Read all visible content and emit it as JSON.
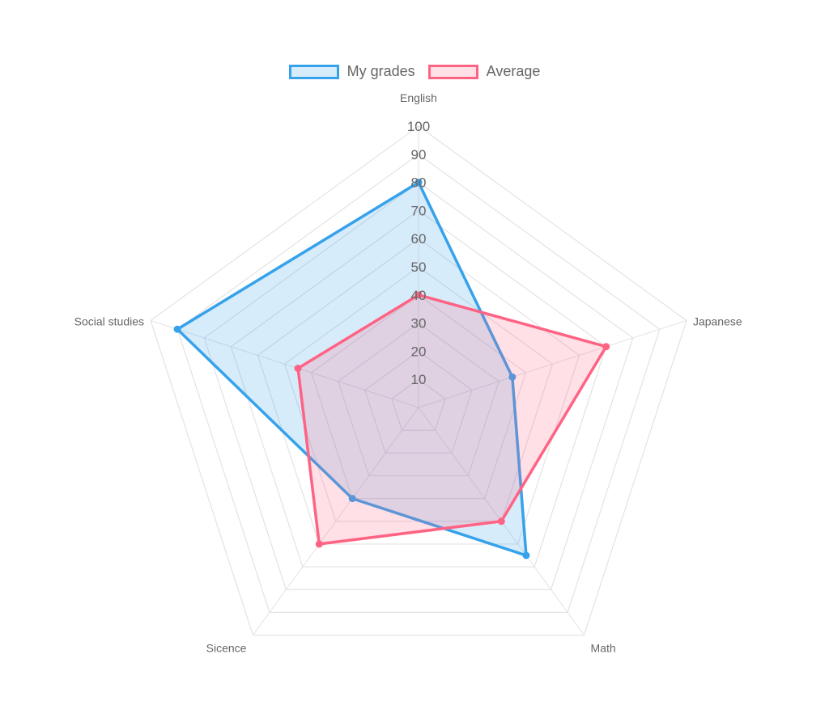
{
  "chart_data": {
    "type": "radar",
    "categories": [
      "English",
      "Japanese",
      "Math",
      "Sicence",
      "Social studies"
    ],
    "series": [
      {
        "name": "My grades",
        "values": [
          80,
          35,
          65,
          40,
          90
        ],
        "color": "#36a2eb"
      },
      {
        "name": "Average",
        "values": [
          40,
          70,
          50,
          60,
          45
        ],
        "color": "#ff6384"
      }
    ],
    "rlim": [
      0,
      100
    ],
    "ticks": [
      10,
      20,
      30,
      40,
      50,
      60,
      70,
      80,
      90,
      100
    ],
    "grid": true,
    "legend_position": "top"
  }
}
